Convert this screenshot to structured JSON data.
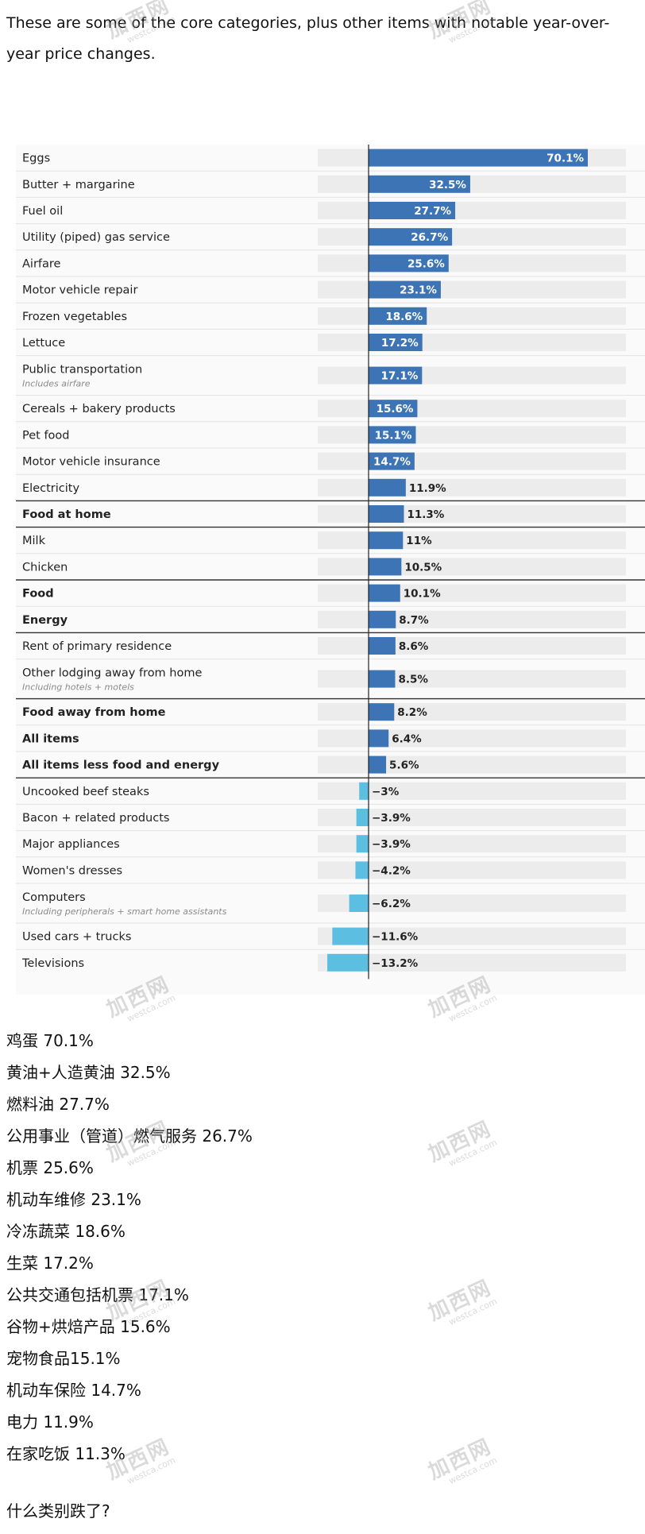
{
  "intro_text": "These are some of the core categories, plus other items with notable year-over-year price changes.",
  "colors": {
    "positive": "#3d74b5",
    "negative": "#5cbfe1",
    "track": "#ececec",
    "divider": "#333333"
  },
  "chart_data": {
    "type": "bar",
    "orientation": "horizontal",
    "unit": "%",
    "xlim": [
      -20,
      70.1
    ],
    "grid": false,
    "rows": [
      {
        "label": "Eggs",
        "value": 70.1,
        "display": "70.1%"
      },
      {
        "label": "Butter + margarine",
        "value": 32.5,
        "display": "32.5%"
      },
      {
        "label": "Fuel oil",
        "value": 27.7,
        "display": "27.7%"
      },
      {
        "label": "Utility (piped) gas service",
        "value": 26.7,
        "display": "26.7%"
      },
      {
        "label": "Airfare",
        "value": 25.6,
        "display": "25.6%"
      },
      {
        "label": "Motor vehicle repair",
        "value": 23.1,
        "display": "23.1%"
      },
      {
        "label": "Frozen vegetables",
        "value": 18.6,
        "display": "18.6%"
      },
      {
        "label": "Lettuce",
        "value": 17.2,
        "display": "17.2%"
      },
      {
        "label": "Public transportation",
        "note": "Includes airfare",
        "value": 17.1,
        "display": "17.1%"
      },
      {
        "label": "Cereals + bakery products",
        "value": 15.6,
        "display": "15.6%"
      },
      {
        "label": "Pet food",
        "value": 15.1,
        "display": "15.1%"
      },
      {
        "label": "Motor vehicle insurance",
        "value": 14.7,
        "display": "14.7%"
      },
      {
        "label": "Electricity",
        "value": 11.9,
        "display": "11.9%"
      },
      {
        "label": "Food at home",
        "value": 11.3,
        "display": "11.3%",
        "bold": true
      },
      {
        "label": "Milk",
        "value": 11,
        "display": "11%"
      },
      {
        "label": "Chicken",
        "value": 10.5,
        "display": "10.5%"
      },
      {
        "label": "Food",
        "value": 10.1,
        "display": "10.1%",
        "bold": true
      },
      {
        "label": "Energy",
        "value": 8.7,
        "display": "8.7%",
        "bold": true
      },
      {
        "label": "Rent of primary residence",
        "value": 8.6,
        "display": "8.6%"
      },
      {
        "label": "Other lodging away from home",
        "note": "Including hotels + motels",
        "value": 8.5,
        "display": "8.5%"
      },
      {
        "label": "Food away from home",
        "value": 8.2,
        "display": "8.2%",
        "bold": true
      },
      {
        "label": "All items",
        "value": 6.4,
        "display": "6.4%",
        "bold": true
      },
      {
        "label": "All items less food and energy",
        "value": 5.6,
        "display": "5.6%",
        "bold": true
      },
      {
        "label": "Uncooked beef steaks",
        "value": -3,
        "display": "−3%"
      },
      {
        "label": "Bacon + related products",
        "value": -3.9,
        "display": "−3.9%"
      },
      {
        "label": "Major appliances",
        "value": -3.9,
        "display": "−3.9%"
      },
      {
        "label": "Women's dresses",
        "value": -4.2,
        "display": "−4.2%"
      },
      {
        "label": "Computers",
        "note": "Including peripherals + smart home assistants",
        "value": -6.2,
        "display": "−6.2%"
      },
      {
        "label": "Used cars + trucks",
        "value": -11.6,
        "display": "−11.6%"
      },
      {
        "label": "Televisions",
        "value": -13.2,
        "display": "−13.2%"
      }
    ]
  },
  "zh_lines": [
    "鸡蛋 70.1%",
    "黄油+人造黄油 32.5%",
    "燃料油 27.7%",
    "公用事业（管道）燃气服务 26.7%",
    "机票 25.6%",
    "机动车维修 23.1%",
    "冷冻蔬菜 18.6%",
    "生菜 17.2%",
    "公共交通包括机票 17.1%",
    "谷物+烘焙产品 15.6%",
    "宠物食品15.1%",
    "机动车保险 14.7%",
    "电力 11.9%",
    "在家吃饭 11.3%"
  ],
  "question": "什么类别跌了?",
  "watermark": {
    "main": "加西网",
    "sub": "westca.com"
  }
}
